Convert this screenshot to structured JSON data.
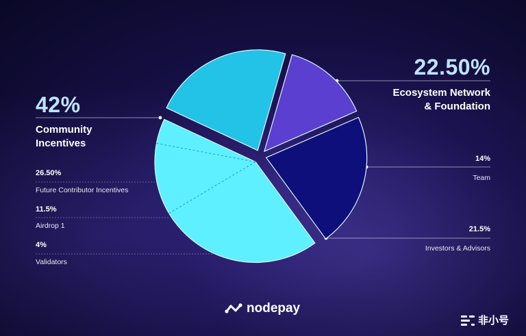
{
  "chart_data": {
    "type": "pie",
    "slices": [
      {
        "label": "Ecosystem Network & Foundation",
        "pct_text": "22.50%",
        "value": 22.5,
        "color": "#22c3e6"
      },
      {
        "label": "Team",
        "pct_text": "14%",
        "value": 14,
        "color": "#5b3fd0"
      },
      {
        "label": "Investors & Advisors",
        "pct_text": "21.5%",
        "value": 21.5,
        "color": "#0e0f7a"
      },
      {
        "label": "Community Incentives",
        "pct_text": "42%",
        "value": 42,
        "color": "#5ef0ff"
      }
    ],
    "sub_slices": [
      {
        "label": "Future Contributor Incentives",
        "pct_text": "26.50%",
        "value": 26.5
      },
      {
        "label": "Airdrop 1",
        "pct_text": "11.5%",
        "value": 11.5
      },
      {
        "label": "Validators",
        "pct_text": "4%",
        "value": 4
      }
    ]
  },
  "labels": {
    "community_pct": "42%",
    "community_title_1": "Community",
    "community_title_2": "Incentives",
    "future_pct": "26.50%",
    "future_label": "Future Contributor Incentives",
    "airdrop_pct": "11.5%",
    "airdrop_label": "Airdrop 1",
    "validators_pct": "4%",
    "validators_label": "Validators",
    "ecosystem_pct": "22.50%",
    "ecosystem_title_1": "Ecosystem Network",
    "ecosystem_title_2": "& Foundation",
    "team_pct": "14%",
    "team_label": "Team",
    "investors_pct": "21.5%",
    "investors_label": "Investors & Advisors"
  },
  "brand": {
    "name": "nodepay",
    "icon": "nodepay-logo-icon"
  },
  "watermark": {
    "text": "非小号",
    "icon": "feixiaohao-logo-icon"
  }
}
